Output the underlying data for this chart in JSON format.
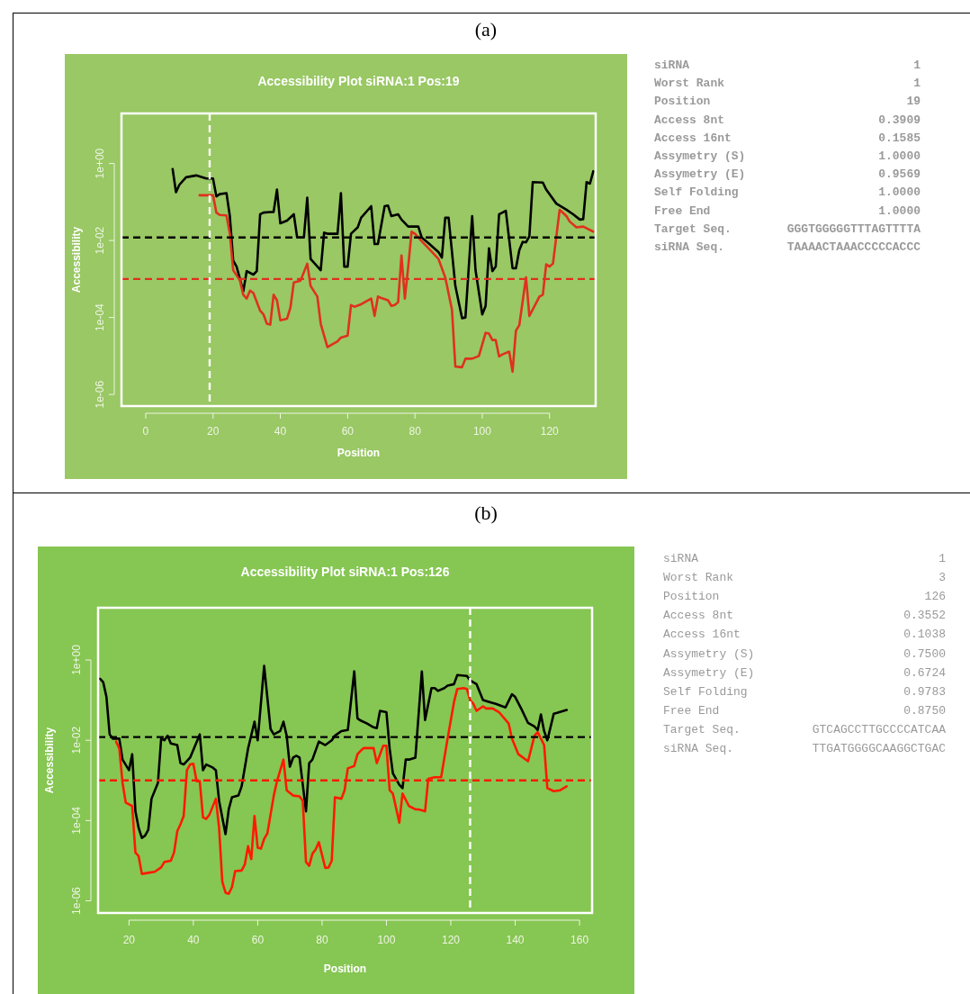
{
  "chart_data": [
    {
      "type": "line",
      "title": "Accessibility Plot siRNA:1 Pos:19",
      "xlabel": "Position",
      "ylabel": "Accessibility",
      "log": "y",
      "annotations": [
        "(a)"
      ],
      "xlim": [
        -7.2,
        133.7
      ],
      "xticks": [
        0,
        20,
        40,
        60,
        80,
        100,
        120
      ],
      "ylim": [
        5e-07,
        20
      ],
      "yticks": [
        {
          "value": 1,
          "label": "1e+00"
        },
        {
          "value": 0.01,
          "label": "1e-02"
        },
        {
          "value": 0.0001,
          "label": "1e-04"
        },
        {
          "value": 1e-06,
          "label": "1e-06"
        }
      ],
      "ref_lines": [
        {
          "axis": "y",
          "value": 0.012,
          "color": "#000000",
          "line_style": "dashed"
        },
        {
          "axis": "y",
          "value": 0.001,
          "color": "#e0301e",
          "line_style": "dashed"
        },
        {
          "axis": "x",
          "value": 19,
          "color": "#ffffff",
          "line_style": "dashed"
        }
      ],
      "series": [
        {
          "color": "#000000",
          "x": [
            8,
            9,
            10,
            12,
            15,
            18,
            20,
            21,
            22,
            24,
            25,
            26,
            27,
            29,
            30,
            32,
            33,
            34,
            35,
            37,
            38,
            39,
            40,
            42,
            44,
            45,
            47,
            48,
            49,
            52,
            53,
            54,
            56,
            57,
            58,
            59,
            60,
            61,
            63,
            64,
            67,
            68,
            69,
            71,
            72,
            73,
            75,
            76,
            78,
            81,
            82,
            84,
            87,
            88,
            89,
            90,
            92,
            94,
            95,
            97,
            98,
            100,
            101,
            102,
            103,
            104,
            105,
            106,
            107,
            109,
            110,
            111,
            112,
            113,
            114,
            115,
            118,
            119,
            122,
            125,
            127,
            129,
            130,
            131,
            132,
            133
          ],
          "values": [
            0.72,
            0.18,
            0.28,
            0.44,
            0.49,
            0.41,
            0.41,
            0.14,
            0.16,
            0.17,
            0.043,
            0.003,
            0.0021,
            0.00048,
            0.0016,
            0.0013,
            0.0016,
            0.048,
            0.053,
            0.055,
            0.055,
            0.21,
            0.028,
            0.033,
            0.048,
            0.012,
            0.012,
            0.13,
            0.0033,
            0.0017,
            0.016,
            0.015,
            0.015,
            0.015,
            0.17,
            0.0021,
            0.0021,
            0.015,
            0.022,
            0.039,
            0.078,
            0.0081,
            0.0081,
            0.078,
            0.081,
            0.043,
            0.048,
            0.035,
            0.023,
            0.023,
            0.012,
            0.0086,
            0.005,
            0.0036,
            0.039,
            0.039,
            0.00066,
            9.6e-05,
            0.0001,
            0.043,
            0.0017,
            0.00012,
            0.0002,
            0.0063,
            0.0016,
            0.0021,
            0.048,
            0.053,
            0.059,
            0.0019,
            0.0019,
            0.0056,
            0.0092,
            0.009,
            0.013,
            0.33,
            0.32,
            0.21,
            0.091,
            0.063,
            0.048,
            0.035,
            0.036,
            0.33,
            0.3,
            0.63
          ]
        },
        {
          "color": "#e0301e",
          "x": [
            16,
            18,
            20,
            21,
            22,
            24,
            25,
            26,
            28,
            29,
            30,
            31,
            32,
            34,
            35,
            36,
            37,
            38,
            39,
            40,
            42,
            43,
            44,
            46,
            48,
            49,
            51,
            52,
            54,
            55,
            57,
            58,
            60,
            61,
            62,
            64,
            67,
            68,
            69,
            70,
            72,
            73,
            74,
            75,
            76,
            77,
            78,
            79,
            80,
            82,
            84,
            87,
            89,
            91,
            92,
            94,
            95,
            97,
            99,
            101,
            102,
            103,
            104,
            105,
            106,
            108,
            109,
            110,
            111,
            113,
            114,
            117,
            118,
            119,
            120,
            121,
            123,
            125,
            126,
            128,
            130,
            133
          ],
          "values": [
            0.15,
            0.15,
            0.15,
            0.053,
            0.046,
            0.045,
            0.015,
            0.0017,
            0.00091,
            0.00039,
            0.00031,
            0.0005,
            0.00043,
            0.00015,
            0.00012,
            6.9e-05,
            6.5e-05,
            0.00039,
            0.00028,
            8.5e-05,
            9.3e-05,
            0.00018,
            0.00081,
            0.00091,
            0.0025,
            0.00066,
            0.00035,
            6.9e-05,
            1.7e-05,
            1.9e-05,
            2.4e-05,
            3e-05,
            3.4e-05,
            0.00021,
            0.00019,
            0.00022,
            0.00031,
            0.00011,
            0.00035,
            0.00032,
            0.00028,
            0.0002,
            0.00021,
            0.00025,
            0.0041,
            0.00031,
            0.0021,
            0.017,
            0.015,
            0.0096,
            0.0063,
            0.0033,
            0.0011,
            0.00016,
            5.3e-06,
            5.1e-06,
            8.5e-06,
            8.5e-06,
            1e-05,
            4e-05,
            3.8e-05,
            2.6e-05,
            2.6e-05,
            9.7e-06,
            1.1e-05,
            1.3e-05,
            3.9e-06,
            4.5e-05,
            6.3e-05,
            0.0011,
            0.00011,
            0.00035,
            0.00039,
            0.0024,
            0.0021,
            0.0025,
            0.063,
            0.043,
            0.031,
            0.022,
            0.023,
            0.017
          ]
        }
      ]
    },
    {
      "type": "other",
      "annotations": [
        "siRNA",
        "1",
        "Worst Rank",
        "1",
        "Position",
        "19",
        "Access 8nt",
        "0.3909",
        "Access 16nt",
        "0.1585",
        "Assymetry (S)",
        "1.0000",
        "Assymetry (E)",
        "0.9569",
        "Self Folding",
        "1.0000",
        "Free End",
        "1.0000",
        "Target Seq.",
        "GGGTGGGGGTTTAGTTTTA",
        "siRNA Seq.",
        "TAAAACTAAACCCCCACCC"
      ]
    },
    {
      "type": "line",
      "title": "Accessibility Plot siRNA:1 Pos:126",
      "xlabel": "Position",
      "ylabel": "Accessibility",
      "log": "y",
      "annotations": [
        "(b)"
      ],
      "xlim": [
        10.4,
        163.9
      ],
      "xticks": [
        20,
        40,
        60,
        80,
        100,
        120,
        140,
        160
      ],
      "ylim": [
        5e-07,
        20
      ],
      "yticks": [
        {
          "value": 1,
          "label": "1e+00"
        },
        {
          "value": 0.01,
          "label": "1e-02"
        },
        {
          "value": 0.0001,
          "label": "1e-04"
        },
        {
          "value": 1e-06,
          "label": "1e-06"
        }
      ],
      "ref_lines": [
        {
          "axis": "y",
          "value": 0.012,
          "color": "#000000",
          "line_style": "dashed"
        },
        {
          "axis": "y",
          "value": 0.001,
          "color": "#ff1a00",
          "line_style": "dashed"
        },
        {
          "axis": "x",
          "value": 126,
          "color": "#ffffff",
          "line_style": "dashed"
        }
      ],
      "series": [
        {
          "color": "#000000",
          "x": [
            11,
            12,
            13,
            14,
            15,
            17,
            18,
            20,
            21,
            22,
            23,
            24,
            25,
            26,
            27,
            29,
            30,
            31,
            32,
            33,
            35,
            36,
            37,
            39,
            42,
            43,
            44,
            46,
            47,
            48,
            50,
            51,
            52,
            54,
            55,
            57,
            59,
            60,
            62,
            64,
            65,
            67,
            68,
            69,
            70,
            71,
            72,
            73,
            75,
            76,
            77,
            79,
            81,
            83,
            84,
            86,
            88,
            90,
            91,
            92,
            94,
            96,
            97,
            98,
            100,
            101,
            102,
            104,
            105,
            106,
            107,
            109,
            111,
            112,
            114,
            115,
            116,
            118,
            119,
            121,
            122,
            125,
            126,
            128,
            130,
            132,
            134,
            137,
            139,
            140,
            142,
            144,
            146,
            147,
            148,
            149,
            150,
            152,
            153,
            156
          ],
          "values": [
            0.34,
            0.28,
            0.12,
            0.014,
            0.011,
            0.011,
            0.0033,
            0.0018,
            0.0045,
            0.00017,
            6.6e-05,
            3.7e-05,
            4.2e-05,
            5.9e-05,
            0.00035,
            0.00087,
            0.011,
            0.01,
            0.013,
            0.0083,
            0.0076,
            0.0027,
            0.0025,
            0.0037,
            0.014,
            0.0018,
            0.0025,
            0.0021,
            0.0018,
            0.00031,
            4.6e-05,
            0.00019,
            0.00038,
            0.00042,
            0.00071,
            0.0062,
            0.029,
            0.01,
            0.71,
            0.019,
            0.014,
            0.017,
            0.029,
            0.013,
            0.0022,
            0.0037,
            0.0041,
            0.0037,
            0.00017,
            0.0027,
            0.0033,
            0.0093,
            0.0076,
            0.01,
            0.013,
            0.017,
            0.018,
            0.52,
            0.035,
            0.031,
            0.026,
            0.021,
            0.02,
            0.054,
            0.05,
            0.0062,
            0.0015,
            0.00078,
            0.00064,
            0.0033,
            0.0033,
            0.0037,
            0.52,
            0.032,
            0.2,
            0.2,
            0.17,
            0.2,
            0.23,
            0.25,
            0.42,
            0.4,
            0.31,
            0.25,
            0.1,
            0.09,
            0.081,
            0.066,
            0.14,
            0.12,
            0.059,
            0.027,
            0.022,
            0.018,
            0.044,
            0.017,
            0.01,
            0.046,
            0.048,
            0.057
          ]
        },
        {
          "color": "#ff1a00",
          "x": [
            16,
            17,
            18,
            19,
            21,
            22,
            23,
            24,
            26,
            28,
            30,
            31,
            33,
            34,
            35,
            36,
            37,
            38,
            39,
            40,
            41,
            42,
            43,
            44,
            45,
            47,
            48,
            49,
            50,
            51,
            52,
            53,
            55,
            56,
            57,
            58,
            59,
            60,
            61,
            62,
            63,
            65,
            66,
            68,
            69,
            71,
            73,
            74,
            75,
            76,
            77,
            78,
            79,
            81,
            82,
            83,
            84,
            86,
            87,
            88,
            90,
            91,
            92,
            93,
            95,
            96,
            97,
            99,
            100,
            101,
            102,
            104,
            105,
            107,
            109,
            110,
            112,
            113,
            115,
            117,
            119,
            121,
            122,
            124,
            125,
            126,
            127,
            128,
            130,
            131,
            133,
            135,
            138,
            139,
            141,
            144,
            146,
            147,
            149,
            150,
            152,
            154,
            156
          ],
          "values": [
            0.0093,
            0.0062,
            0.00087,
            0.00028,
            0.00023,
            1.6e-05,
            1.3e-05,
            4.7e-06,
            5e-06,
            5.3e-06,
            6.8e-06,
            9.3e-06,
            1e-05,
            1.6e-05,
            5.4e-05,
            8.1e-05,
            0.00013,
            0.0018,
            0.0025,
            0.0026,
            0.00096,
            0.00096,
            0.00012,
            0.00011,
            0.00014,
            0.00035,
            6.6e-05,
            3e-06,
            1.6e-06,
            1.5e-06,
            2.2e-06,
            5.5e-06,
            5.7e-06,
            8.1e-06,
            2.3e-05,
            1.1e-05,
            0.00013,
            2.1e-05,
            2e-05,
            3.5e-05,
            4.8e-05,
            0.00042,
            0.00096,
            0.0033,
            0.00057,
            0.00042,
            0.0004,
            0.00031,
            9.3e-06,
            7.5e-06,
            1.5e-05,
            1.9e-05,
            2.9e-05,
            6.6e-06,
            6.8e-06,
            1e-05,
            0.00038,
            0.00035,
            0.00057,
            0.002,
            0.0023,
            0.0045,
            0.0055,
            0.0064,
            0.0064,
            0.0064,
            0.0027,
            0.0073,
            0.0073,
            0.00057,
            0.00047,
            8.9e-05,
            0.00047,
            0.00023,
            0.00019,
            0.00019,
            0.00017,
            0.0011,
            0.0012,
            0.0012,
            0.011,
            0.09,
            0.19,
            0.2,
            0.19,
            0.1,
            0.081,
            0.054,
            0.07,
            0.062,
            0.062,
            0.05,
            0.026,
            0.011,
            0.0045,
            0.003,
            0.013,
            0.016,
            0.0076,
            0.00064,
            0.00054,
            0.00057,
            0.00071
          ]
        }
      ]
    },
    {
      "type": "other",
      "annotations": [
        "siRNA",
        "1",
        "Worst Rank",
        "3",
        "Position",
        "126",
        "Access 8nt",
        "0.3552",
        "Access 16nt",
        "0.1038",
        "Assymetry (S)",
        "0.7500",
        "Assymetry (E)",
        "0.6724",
        "Self Folding",
        "0.9783",
        "Free End",
        "0.8750",
        "Target Seq.",
        "GTCAGCCTTGCCCCATCAA",
        "siRNA Seq.",
        "TTGATGGGGCAAGGCTGAC"
      ]
    }
  ]
}
